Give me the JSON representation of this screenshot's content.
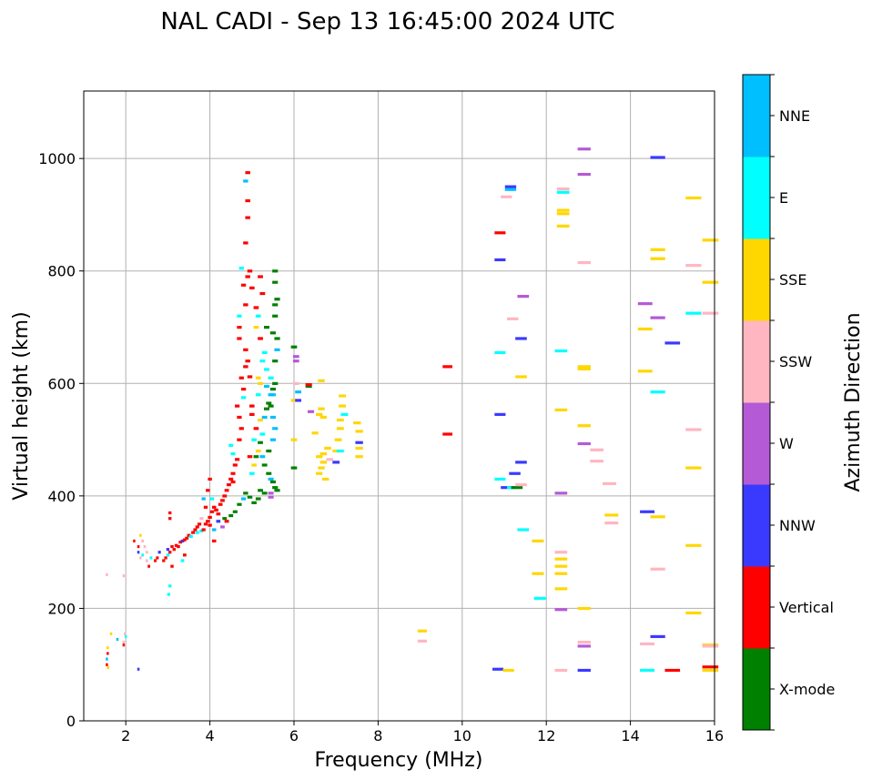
{
  "chart_data": {
    "type": "scatter",
    "title": "NAL CADI - Sep 13 16:45:00 2024 UTC",
    "xlabel": "Frequency (MHz)",
    "ylabel": "Virtual height (km)",
    "xlim": [
      1,
      16
    ],
    "ylim": [
      0,
      1120
    ],
    "xticks": [
      2,
      4,
      6,
      8,
      10,
      12,
      14,
      16
    ],
    "yticks": [
      0,
      200,
      400,
      600,
      800,
      1000
    ],
    "grid": true,
    "colorbar": {
      "label": "Azimuth Direction",
      "categories": [
        "X-mode",
        "Vertical",
        "NNW",
        "W",
        "SSW",
        "SSE",
        "E",
        "NNE"
      ],
      "colors": [
        "#008000",
        "#ff0000",
        "#3a3aff",
        "#b45ad6",
        "#ffb6c1",
        "#ffd700",
        "#00ffff",
        "#00bfff"
      ]
    },
    "points_format": "[frequency_MHz, virtual_height_km, category_index]",
    "points": [
      [
        1.55,
        100,
        1
      ],
      [
        1.55,
        110,
        7
      ],
      [
        1.57,
        120,
        1
      ],
      [
        1.57,
        130,
        5
      ],
      [
        1.58,
        95,
        5
      ],
      [
        1.55,
        260,
        4
      ],
      [
        1.65,
        155,
        5
      ],
      [
        1.8,
        145,
        7
      ],
      [
        1.95,
        140,
        4
      ],
      [
        1.98,
        155,
        4
      ],
      [
        2.0,
        150,
        6
      ],
      [
        1.95,
        135,
        1
      ],
      [
        1.95,
        258,
        4
      ],
      [
        2.3,
        92,
        2
      ],
      [
        2.2,
        320,
        1
      ],
      [
        2.3,
        310,
        1
      ],
      [
        2.3,
        300,
        2
      ],
      [
        2.35,
        330,
        5
      ],
      [
        2.35,
        290,
        4
      ],
      [
        2.4,
        295,
        6
      ],
      [
        2.4,
        320,
        4
      ],
      [
        2.45,
        310,
        4
      ],
      [
        2.5,
        285,
        4
      ],
      [
        2.5,
        300,
        4
      ],
      [
        2.55,
        275,
        1
      ],
      [
        2.6,
        290,
        6
      ],
      [
        2.7,
        285,
        1
      ],
      [
        2.75,
        290,
        1
      ],
      [
        2.8,
        300,
        2
      ],
      [
        2.9,
        285,
        1
      ],
      [
        2.95,
        290,
        1
      ],
      [
        3.0,
        295,
        6
      ],
      [
        3.0,
        305,
        2
      ],
      [
        3.05,
        300,
        1
      ],
      [
        3.1,
        310,
        1
      ],
      [
        3.15,
        305,
        1
      ],
      [
        3.2,
        312,
        1
      ],
      [
        3.25,
        310,
        1
      ],
      [
        3.3,
        318,
        1
      ],
      [
        3.35,
        320,
        2
      ],
      [
        3.4,
        322,
        1
      ],
      [
        3.45,
        325,
        1
      ],
      [
        3.5,
        330,
        1
      ],
      [
        3.55,
        328,
        6
      ],
      [
        3.6,
        335,
        1
      ],
      [
        3.65,
        340,
        1
      ],
      [
        3.7,
        345,
        1
      ],
      [
        3.75,
        350,
        1
      ],
      [
        3.8,
        338,
        6
      ],
      [
        3.85,
        340,
        1
      ],
      [
        3.9,
        350,
        1
      ],
      [
        3.95,
        355,
        1
      ],
      [
        4.0,
        348,
        1
      ],
      [
        4.0,
        362,
        1
      ],
      [
        4.05,
        372,
        1
      ],
      [
        4.1,
        380,
        1
      ],
      [
        4.15,
        375,
        1
      ],
      [
        4.2,
        368,
        1
      ],
      [
        4.25,
        385,
        1
      ],
      [
        4.3,
        392,
        1
      ],
      [
        4.35,
        400,
        1
      ],
      [
        4.4,
        410,
        1
      ],
      [
        4.45,
        420,
        1
      ],
      [
        4.5,
        430,
        1
      ],
      [
        4.55,
        425,
        1
      ],
      [
        3.05,
        370,
        1
      ],
      [
        3.05,
        360,
        1
      ],
      [
        3.1,
        275,
        1
      ],
      [
        3.05,
        240,
        6
      ],
      [
        3.02,
        225,
        6
      ],
      [
        3.35,
        285,
        6
      ],
      [
        3.4,
        295,
        1
      ],
      [
        3.7,
        335,
        6
      ],
      [
        3.8,
        360,
        4
      ],
      [
        3.85,
        395,
        7
      ],
      [
        3.9,
        380,
        1
      ],
      [
        3.95,
        410,
        1
      ],
      [
        4.0,
        430,
        1
      ],
      [
        4.05,
        395,
        6
      ],
      [
        4.1,
        340,
        7
      ],
      [
        4.1,
        320,
        1
      ],
      [
        4.2,
        355,
        2
      ],
      [
        4.3,
        345,
        3
      ],
      [
        4.35,
        360,
        0
      ],
      [
        4.4,
        355,
        1
      ],
      [
        4.5,
        365,
        0
      ],
      [
        4.6,
        372,
        0
      ],
      [
        4.7,
        385,
        0
      ],
      [
        4.8,
        395,
        7
      ],
      [
        4.85,
        405,
        0
      ],
      [
        4.95,
        398,
        0
      ],
      [
        5.05,
        388,
        0
      ],
      [
        5.15,
        395,
        0
      ],
      [
        5.2,
        410,
        0
      ],
      [
        5.3,
        405,
        0
      ],
      [
        5.45,
        405,
        3
      ],
      [
        5.45,
        398,
        3
      ],
      [
        4.55,
        440,
        1
      ],
      [
        4.6,
        455,
        1
      ],
      [
        4.65,
        465,
        1
      ],
      [
        4.55,
        475,
        6
      ],
      [
        4.5,
        490,
        6
      ],
      [
        4.7,
        500,
        1
      ],
      [
        4.75,
        520,
        1
      ],
      [
        4.7,
        540,
        1
      ],
      [
        4.65,
        560,
        1
      ],
      [
        4.8,
        575,
        6
      ],
      [
        4.8,
        590,
        1
      ],
      [
        4.75,
        610,
        1
      ],
      [
        4.85,
        630,
        1
      ],
      [
        4.9,
        640,
        1
      ],
      [
        4.95,
        612,
        1
      ],
      [
        4.85,
        660,
        1
      ],
      [
        4.7,
        680,
        1
      ],
      [
        4.7,
        700,
        1
      ],
      [
        4.7,
        720,
        6
      ],
      [
        4.85,
        740,
        1
      ],
      [
        4.8,
        775,
        1
      ],
      [
        4.75,
        805,
        6
      ],
      [
        4.9,
        790,
        1
      ],
      [
        4.95,
        800,
        1
      ],
      [
        4.85,
        850,
        1
      ],
      [
        4.9,
        895,
        1
      ],
      [
        4.9,
        925,
        1
      ],
      [
        4.85,
        960,
        7
      ],
      [
        4.9,
        975,
        1
      ],
      [
        5.0,
        440,
        6
      ],
      [
        5.05,
        455,
        5
      ],
      [
        5.1,
        470,
        0
      ],
      [
        5.15,
        480,
        5
      ],
      [
        5.2,
        495,
        0
      ],
      [
        5.25,
        510,
        6
      ],
      [
        5.1,
        520,
        1
      ],
      [
        5.2,
        535,
        5
      ],
      [
        5.3,
        540,
        7
      ],
      [
        5.35,
        555,
        0
      ],
      [
        5.4,
        565,
        0
      ],
      [
        5.45,
        580,
        7
      ],
      [
        5.5,
        590,
        0
      ],
      [
        5.55,
        600,
        0
      ],
      [
        5.45,
        610,
        6
      ],
      [
        5.35,
        625,
        6
      ],
      [
        5.25,
        640,
        6
      ],
      [
        5.3,
        655,
        6
      ],
      [
        5.2,
        680,
        1
      ],
      [
        5.1,
        700,
        5
      ],
      [
        5.35,
        700,
        0
      ],
      [
        5.5,
        690,
        0
      ],
      [
        5.55,
        720,
        0
      ],
      [
        5.55,
        740,
        0
      ],
      [
        5.6,
        750,
        0
      ],
      [
        5.55,
        780,
        0
      ],
      [
        5.55,
        800,
        0
      ],
      [
        5.25,
        760,
        1
      ],
      [
        5.2,
        790,
        1
      ],
      [
        5.0,
        770,
        1
      ],
      [
        5.1,
        735,
        1
      ],
      [
        5.15,
        720,
        6
      ],
      [
        5.0,
        560,
        1
      ],
      [
        5.0,
        545,
        1
      ],
      [
        5.05,
        500,
        6
      ],
      [
        4.95,
        470,
        1
      ],
      [
        5.25,
        470,
        7
      ],
      [
        5.3,
        455,
        0
      ],
      [
        5.4,
        440,
        0
      ],
      [
        5.45,
        430,
        7
      ],
      [
        5.5,
        425,
        0
      ],
      [
        5.55,
        415,
        0
      ],
      [
        5.6,
        410,
        0
      ],
      [
        5.4,
        480,
        0
      ],
      [
        5.5,
        500,
        7
      ],
      [
        5.55,
        520,
        7
      ],
      [
        5.5,
        540,
        7
      ],
      [
        5.45,
        560,
        0
      ],
      [
        5.5,
        580,
        7
      ],
      [
        5.55,
        640,
        0
      ],
      [
        5.6,
        660,
        7
      ],
      [
        5.6,
        680,
        0
      ],
      [
        5.35,
        595,
        7
      ],
      [
        5.2,
        600,
        5
      ],
      [
        5.15,
        580,
        6
      ],
      [
        5.15,
        610,
        5
      ],
      [
        6.0,
        450,
        0
      ],
      [
        6.0,
        500,
        5
      ],
      [
        6.0,
        570,
        5
      ],
      [
        6.05,
        600,
        4
      ],
      [
        6.05,
        640,
        3
      ],
      [
        6.0,
        665,
        0
      ],
      [
        6.05,
        648,
        3
      ],
      [
        6.1,
        585,
        7
      ],
      [
        6.1,
        570,
        2
      ],
      [
        6.35,
        595,
        0
      ],
      [
        6.35,
        598,
        1
      ],
      [
        6.4,
        550,
        3
      ],
      [
        6.5,
        512,
        5
      ],
      [
        6.6,
        545,
        5
      ],
      [
        6.65,
        555,
        5
      ],
      [
        6.7,
        540,
        5
      ],
      [
        6.6,
        440,
        5
      ],
      [
        6.65,
        450,
        5
      ],
      [
        6.7,
        460,
        5
      ],
      [
        6.75,
        430,
        5
      ],
      [
        6.7,
        475,
        5
      ],
      [
        6.8,
        485,
        5
      ],
      [
        6.65,
        605,
        5
      ],
      [
        6.6,
        470,
        5
      ],
      [
        6.85,
        465,
        4
      ],
      [
        7.0,
        460,
        2
      ],
      [
        7.0,
        480,
        5
      ],
      [
        7.05,
        500,
        5
      ],
      [
        7.1,
        520,
        5
      ],
      [
        7.1,
        535,
        5
      ],
      [
        7.15,
        560,
        5
      ],
      [
        7.2,
        545,
        6
      ],
      [
        7.15,
        578,
        5
      ],
      [
        7.1,
        480,
        6
      ],
      [
        7.5,
        530,
        5
      ],
      [
        7.55,
        515,
        5
      ],
      [
        7.55,
        495,
        2
      ],
      [
        7.55,
        485,
        5
      ],
      [
        7.55,
        470,
        5
      ],
      [
        9.05,
        160,
        5
      ],
      [
        9.05,
        142,
        4
      ],
      [
        9.65,
        630,
        1
      ],
      [
        9.65,
        510,
        1
      ],
      [
        10.85,
        92,
        2
      ],
      [
        10.9,
        545,
        2
      ],
      [
        10.9,
        430,
        6
      ],
      [
        10.9,
        655,
        6
      ],
      [
        10.9,
        820,
        2
      ],
      [
        10.9,
        868,
        1
      ],
      [
        11.05,
        932,
        4
      ],
      [
        11.05,
        415,
        2
      ],
      [
        11.1,
        90,
        5
      ],
      [
        11.15,
        945,
        7
      ],
      [
        11.15,
        950,
        2
      ],
      [
        11.2,
        415,
        6
      ],
      [
        11.3,
        415,
        0
      ],
      [
        11.2,
        715,
        4
      ],
      [
        11.25,
        440,
        2
      ],
      [
        11.4,
        460,
        2
      ],
      [
        11.4,
        420,
        4
      ],
      [
        11.4,
        612,
        5
      ],
      [
        11.4,
        680,
        2
      ],
      [
        11.45,
        755,
        3
      ],
      [
        11.45,
        340,
        6
      ],
      [
        11.8,
        320,
        5
      ],
      [
        11.8,
        262,
        5
      ],
      [
        11.85,
        218,
        6
      ],
      [
        12.35,
        90,
        4
      ],
      [
        12.35,
        198,
        3
      ],
      [
        12.35,
        235,
        5
      ],
      [
        12.35,
        262,
        5
      ],
      [
        12.35,
        275,
        5
      ],
      [
        12.35,
        288,
        5
      ],
      [
        12.35,
        300,
        4
      ],
      [
        12.35,
        405,
        3
      ],
      [
        12.35,
        553,
        5
      ],
      [
        12.35,
        658,
        6
      ],
      [
        12.4,
        880,
        5
      ],
      [
        12.4,
        902,
        5
      ],
      [
        12.4,
        908,
        5
      ],
      [
        12.4,
        940,
        6
      ],
      [
        12.4,
        946,
        4
      ],
      [
        12.9,
        90,
        2
      ],
      [
        12.9,
        133,
        3
      ],
      [
        12.9,
        140,
        4
      ],
      [
        12.9,
        200,
        5
      ],
      [
        12.9,
        493,
        3
      ],
      [
        12.9,
        525,
        5
      ],
      [
        12.9,
        626,
        5
      ],
      [
        12.9,
        630,
        5
      ],
      [
        12.9,
        815,
        4
      ],
      [
        12.9,
        972,
        3
      ],
      [
        12.9,
        1017,
        3
      ],
      [
        13.2,
        482,
        4
      ],
      [
        13.2,
        462,
        4
      ],
      [
        13.5,
        422,
        4
      ],
      [
        13.55,
        366,
        5
      ],
      [
        13.55,
        352,
        4
      ],
      [
        14.4,
        90,
        6
      ],
      [
        14.4,
        137,
        4
      ],
      [
        14.4,
        372,
        2
      ],
      [
        14.35,
        622,
        5
      ],
      [
        14.35,
        697,
        5
      ],
      [
        14.35,
        742,
        3
      ],
      [
        14.65,
        150,
        2
      ],
      [
        14.65,
        270,
        4
      ],
      [
        14.65,
        363,
        5
      ],
      [
        14.65,
        585,
        6
      ],
      [
        14.65,
        717,
        3
      ],
      [
        14.65,
        822,
        5
      ],
      [
        14.65,
        838,
        5
      ],
      [
        14.65,
        1002,
        2
      ],
      [
        15.0,
        90,
        1
      ],
      [
        15.0,
        672,
        2
      ],
      [
        15.5,
        192,
        5
      ],
      [
        15.5,
        312,
        5
      ],
      [
        15.5,
        450,
        5
      ],
      [
        15.5,
        518,
        4
      ],
      [
        15.5,
        725,
        6
      ],
      [
        15.5,
        810,
        4
      ],
      [
        15.5,
        930,
        5
      ],
      [
        15.9,
        90,
        5
      ],
      [
        15.9,
        96,
        1
      ],
      [
        15.9,
        135,
        5
      ],
      [
        15.9,
        133,
        4
      ],
      [
        15.9,
        725,
        4
      ],
      [
        15.9,
        780,
        5
      ],
      [
        15.9,
        855,
        5
      ]
    ]
  }
}
